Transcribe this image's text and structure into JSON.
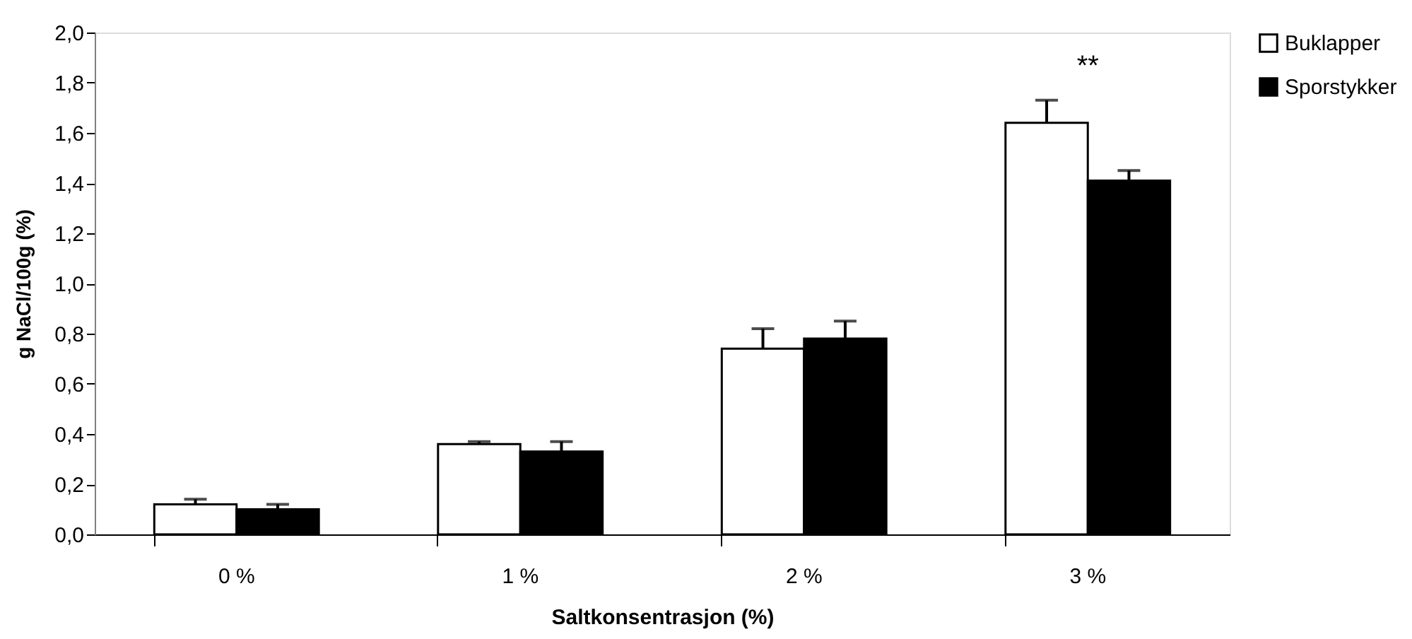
{
  "chart_data": {
    "type": "bar",
    "xlabel": "Saltkonsentrasjon (%)",
    "ylabel": "g NaCl/100g (%)",
    "categories": [
      "0 %",
      "1 %",
      "2 %",
      "3 %"
    ],
    "series": [
      {
        "name": "Buklapper",
        "color": "#ffffff",
        "values": [
          0.12,
          0.36,
          0.74,
          1.64
        ],
        "errors": [
          [
            0.12,
            0.14
          ],
          [
            0.36,
            0.37
          ],
          [
            0.74,
            0.82
          ],
          [
            1.64,
            1.73
          ]
        ]
      },
      {
        "name": "Sporstykker",
        "color": "#000000",
        "values": [
          0.1,
          0.33,
          0.78,
          1.41
        ],
        "errors": [
          [
            0.1,
            0.12
          ],
          [
            0.33,
            0.37
          ],
          [
            0.78,
            0.85
          ],
          [
            1.41,
            1.45
          ]
        ]
      }
    ],
    "ylim": [
      0,
      2.0
    ],
    "yticks": [
      {
        "value": 0,
        "label": "0,0"
      },
      {
        "value": 0.2,
        "label": "0,2"
      },
      {
        "value": 0.4,
        "label": "0,4"
      },
      {
        "value": 0.6,
        "label": "0,6"
      },
      {
        "value": 0.8,
        "label": "0,8"
      },
      {
        "value": 1.0,
        "label": "1,0"
      },
      {
        "value": 1.2,
        "label": "1,2"
      },
      {
        "value": 1.4,
        "label": "1,4"
      },
      {
        "value": 1.6,
        "label": "1,6"
      },
      {
        "value": 1.8,
        "label": "1,8"
      },
      {
        "value": 2.0,
        "label": "2,0"
      }
    ],
    "annotations": [
      "**"
    ],
    "legend": "right",
    "grid": false
  }
}
